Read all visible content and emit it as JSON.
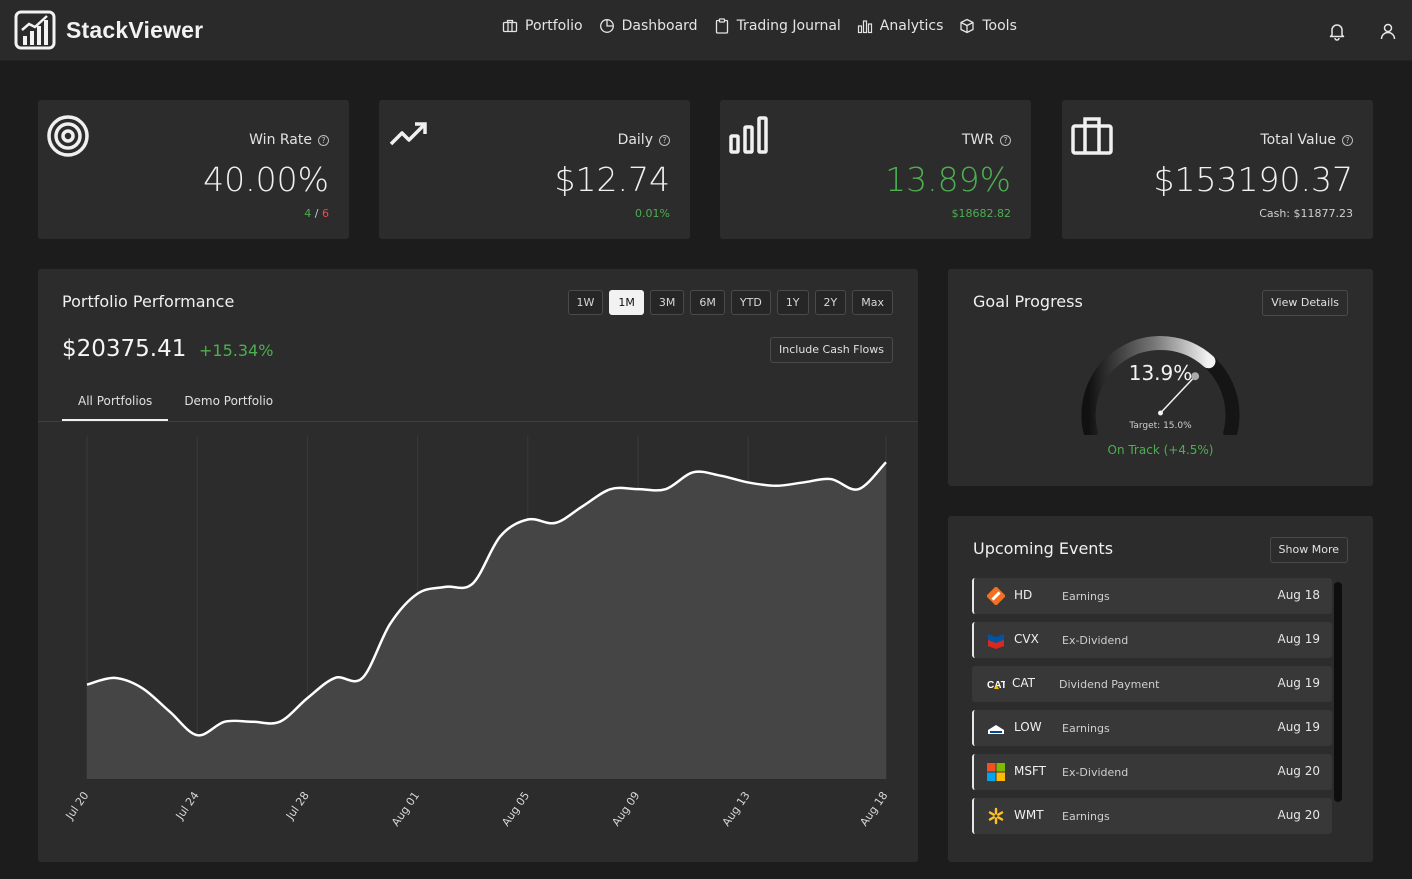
{
  "app": {
    "name": "StackViewer"
  },
  "nav": [
    {
      "label": "Portfolio",
      "icon": "briefcase-icon"
    },
    {
      "label": "Dashboard",
      "icon": "pie-chart-icon"
    },
    {
      "label": "Trading Journal",
      "icon": "clipboard-icon"
    },
    {
      "label": "Analytics",
      "icon": "bar-chart-icon"
    },
    {
      "label": "Tools",
      "icon": "box-icon"
    }
  ],
  "stats": {
    "win_rate": {
      "label": "Win Rate",
      "value": "40.00%",
      "wins": "4",
      "sep": " / ",
      "total": "6"
    },
    "daily": {
      "label": "Daily",
      "value": "$12.74",
      "sub": "0.01%"
    },
    "twr": {
      "label": "TWR",
      "value": "13.89%",
      "sub": "$18682.82"
    },
    "total_value": {
      "label": "Total Value",
      "value": "$153190.37",
      "sub": "Cash: $11877.23"
    }
  },
  "performance": {
    "title": "Portfolio Performance",
    "ranges": [
      "1W",
      "1M",
      "3M",
      "6M",
      "YTD",
      "1Y",
      "2Y",
      "Max"
    ],
    "active_range": "1M",
    "value": "$20375.41",
    "change": "+15.34%",
    "cash_flows_label": "Include Cash Flows",
    "tabs": [
      "All Portfolios",
      "Demo Portfolio"
    ],
    "active_tab": "All Portfolios"
  },
  "chart_data": {
    "type": "area",
    "x": [
      "Jul 20",
      "Jul 21",
      "Jul 22",
      "Jul 23",
      "Jul 24",
      "Jul 25",
      "Jul 26",
      "Jul 27",
      "Jul 28",
      "Jul 29",
      "Jul 30",
      "Jul 31",
      "Aug 01",
      "Aug 02",
      "Aug 03",
      "Aug 04",
      "Aug 05",
      "Aug 06",
      "Aug 07",
      "Aug 08",
      "Aug 09",
      "Aug 10",
      "Aug 11",
      "Aug 12",
      "Aug 13",
      "Aug 14",
      "Aug 15",
      "Aug 16",
      "Aug 17",
      "Aug 18"
    ],
    "values": [
      0.28,
      0.3,
      0.27,
      0.2,
      0.13,
      0.17,
      0.17,
      0.17,
      0.24,
      0.3,
      0.3,
      0.46,
      0.55,
      0.57,
      0.58,
      0.72,
      0.77,
      0.76,
      0.81,
      0.86,
      0.86,
      0.86,
      0.91,
      0.9,
      0.88,
      0.87,
      0.88,
      0.89,
      0.86,
      0.94
    ],
    "tick_labels": [
      "Jul 20",
      "Jul 24",
      "Jul 28",
      "Aug 01",
      "Aug 05",
      "Aug 09",
      "Aug 13",
      "Aug 18"
    ],
    "ylim": [
      0,
      1
    ],
    "grid": "vertical"
  },
  "goal": {
    "title": "Goal Progress",
    "button": "View Details",
    "progress": 0.7,
    "percent": "13.9%",
    "target": "Target: 15.0%",
    "status": "On Track (+4.5%)"
  },
  "events": {
    "title": "Upcoming Events",
    "button": "Show More",
    "items": [
      {
        "ticker": "HD",
        "type": "Earnings",
        "date": "Aug 18",
        "logo": "home-depot-logo",
        "highlight": true
      },
      {
        "ticker": "CVX",
        "type": "Ex-Dividend",
        "date": "Aug 19",
        "logo": "chevron-logo",
        "highlight": true
      },
      {
        "ticker": "CAT",
        "type": "Dividend Payment",
        "date": "Aug 19",
        "logo": "caterpillar-logo",
        "highlight": false
      },
      {
        "ticker": "LOW",
        "type": "Earnings",
        "date": "Aug 19",
        "logo": "lowes-logo",
        "highlight": true
      },
      {
        "ticker": "MSFT",
        "type": "Ex-Dividend",
        "date": "Aug 20",
        "logo": "microsoft-logo",
        "highlight": true
      },
      {
        "ticker": "WMT",
        "type": "Earnings",
        "date": "Aug 20",
        "logo": "walmart-logo",
        "highlight": true
      }
    ]
  }
}
